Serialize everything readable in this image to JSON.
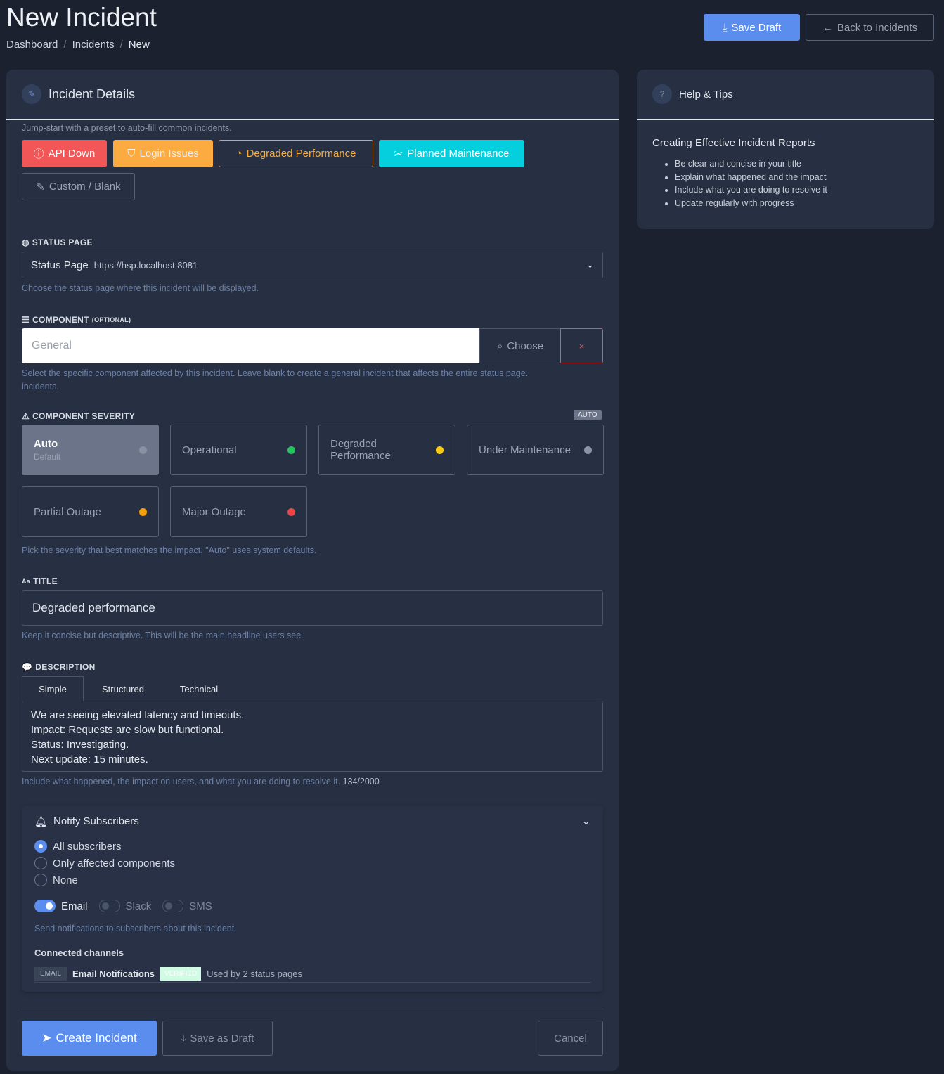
{
  "header": {
    "title": "New Incident",
    "breadcrumb": [
      "Dashboard",
      "Incidents",
      "New"
    ],
    "save_draft": "Save Draft",
    "back": "Back to Incidents"
  },
  "details": {
    "title": "Incident Details",
    "preset_hint": "Jump-start with a preset to auto-fill common incidents.",
    "presets": [
      "API Down",
      "Login Issues",
      "Degraded Performance",
      "Planned Maintenance",
      "Custom / Blank"
    ],
    "status_page": {
      "label": "STATUS PAGE",
      "value": "Status Page",
      "url": "https://hsp.localhost:8081",
      "help": "Choose the status page where this incident will be displayed."
    },
    "component": {
      "label": "COMPONENT",
      "optional": "(OPTIONAL)",
      "placeholder": "General",
      "choose": "Choose",
      "clear": "×",
      "help": "Select the specific component affected by this incident. Leave blank to create a general incident that affects the entire status page.",
      "help2": "incidents."
    },
    "severity": {
      "label": "COMPONENT SEVERITY",
      "badge": "AUTO",
      "help": "Pick the severity that best matches the impact. \"Auto\" uses system defaults.",
      "options": [
        {
          "label": "Auto",
          "sub": "Default",
          "color": "#6b7488",
          "selected": true
        },
        {
          "label": "Operational",
          "color": "#22c55e"
        },
        {
          "label": "Degraded Performance",
          "color": "#facc15"
        },
        {
          "label": "Under Maintenance",
          "color": "#8a94a6"
        },
        {
          "label": "Partial Outage",
          "color": "#f59e0b"
        },
        {
          "label": "Major Outage",
          "color": "#ef4444"
        }
      ]
    },
    "title_field": {
      "label": "TITLE",
      "value": "Degraded performance",
      "help": "Keep it concise but descriptive. This will be the main headline users see."
    },
    "description": {
      "label": "DESCRIPTION",
      "tabs": [
        "Simple",
        "Structured",
        "Technical"
      ],
      "active_tab": "Simple",
      "value": "We are seeing elevated latency and timeouts.\nImpact: Requests are slow but functional.\nStatus: Investigating.\nNext update: 15 minutes.",
      "help": "Include what happened, the impact on users, and what you are doing to resolve it.",
      "count": "134/2000"
    },
    "notify": {
      "title": "Notify Subscribers",
      "options": [
        "All subscribers",
        "Only affected components",
        "None"
      ],
      "selected": "All subscribers",
      "channels": [
        {
          "label": "Email",
          "on": true
        },
        {
          "label": "Slack",
          "on": false
        },
        {
          "label": "SMS",
          "on": false
        }
      ],
      "help": "Send notifications to subscribers about this incident.",
      "connected_label": "Connected channels",
      "connected": {
        "type": "EMAIL",
        "name": "Email Notifications",
        "badge": "VERIFIED",
        "usage": "Used by 2 status pages"
      }
    },
    "actions": {
      "create": "Create Incident",
      "save": "Save as Draft",
      "cancel": "Cancel"
    }
  },
  "help": {
    "title": "Help & Tips",
    "heading": "Creating Effective Incident Reports",
    "tips": [
      "Be clear and concise in your title",
      "Explain what happened and the impact",
      "Include what you are doing to resolve it",
      "Update regularly with progress"
    ]
  }
}
